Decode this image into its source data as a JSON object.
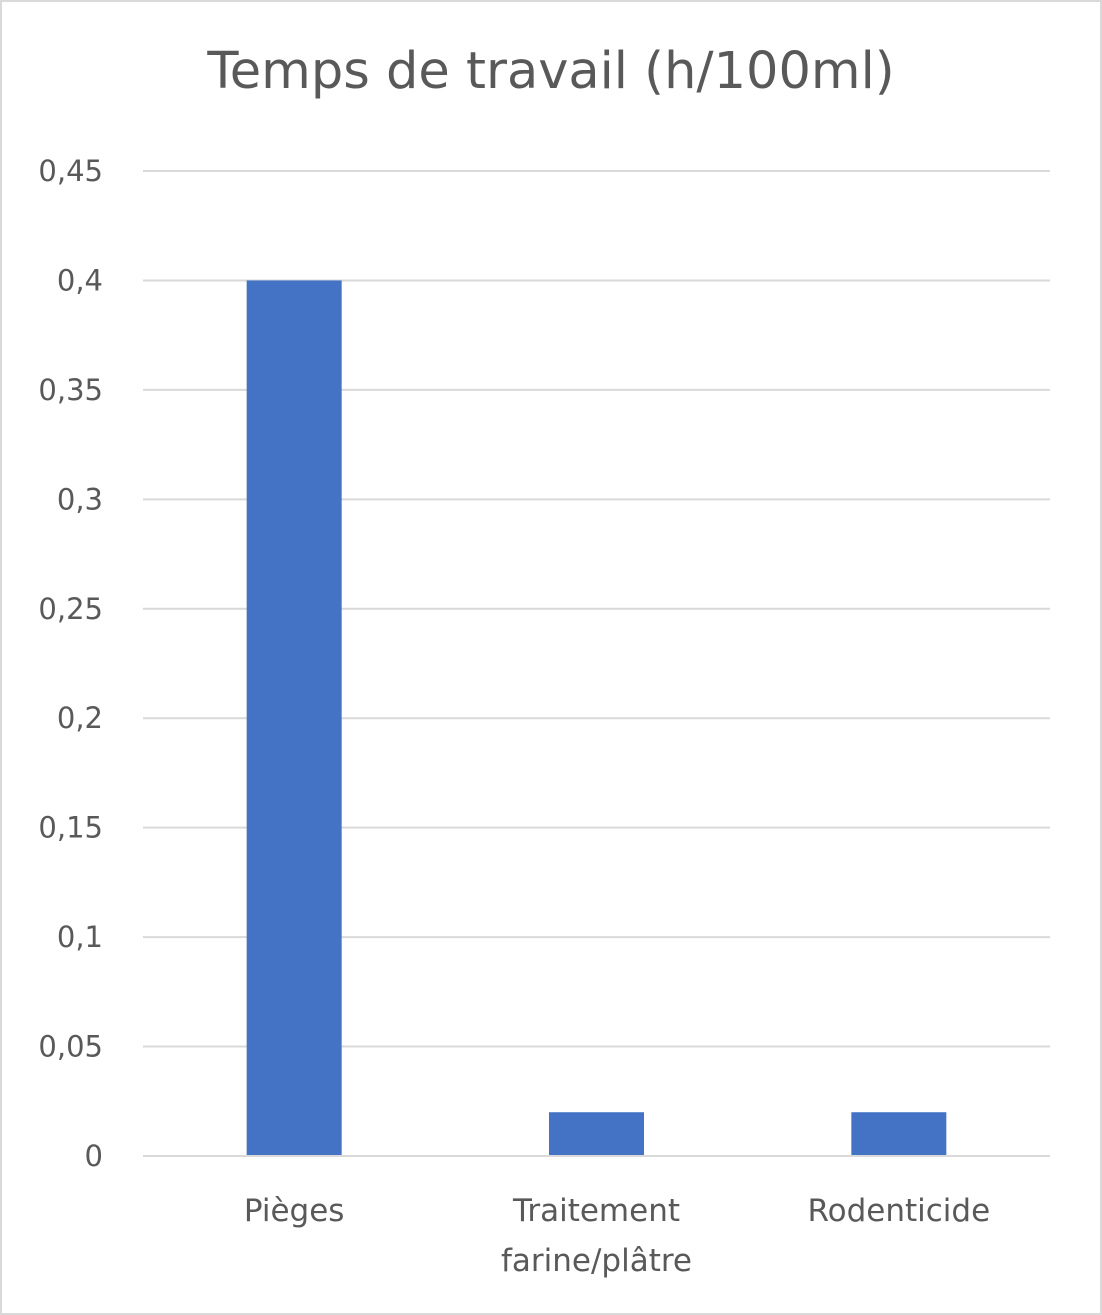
{
  "chart_data": {
    "type": "bar",
    "title": "Temps de travail (h/100ml)",
    "categories": [
      [
        "Pièges"
      ],
      [
        "Traitement",
        "farine/plâtre"
      ],
      [
        "Rodenticide"
      ]
    ],
    "values": [
      0.4,
      0.02,
      0.02
    ],
    "ylim": [
      0,
      0.45
    ],
    "yticks": [
      {
        "value": 0,
        "label": "0"
      },
      {
        "value": 0.05,
        "label": "0,05"
      },
      {
        "value": 0.1,
        "label": "0,1"
      },
      {
        "value": 0.15,
        "label": "0,15"
      },
      {
        "value": 0.2,
        "label": "0,2"
      },
      {
        "value": 0.25,
        "label": "0,25"
      },
      {
        "value": 0.3,
        "label": "0,3"
      },
      {
        "value": 0.35,
        "label": "0,35"
      },
      {
        "value": 0.4,
        "label": "0,4"
      },
      {
        "value": 0.45,
        "label": "0,45"
      }
    ],
    "grid": true,
    "legend": "none",
    "colors": {
      "bar": "#4472c4",
      "grid": "#d9d9d9",
      "text": "#595959"
    }
  }
}
